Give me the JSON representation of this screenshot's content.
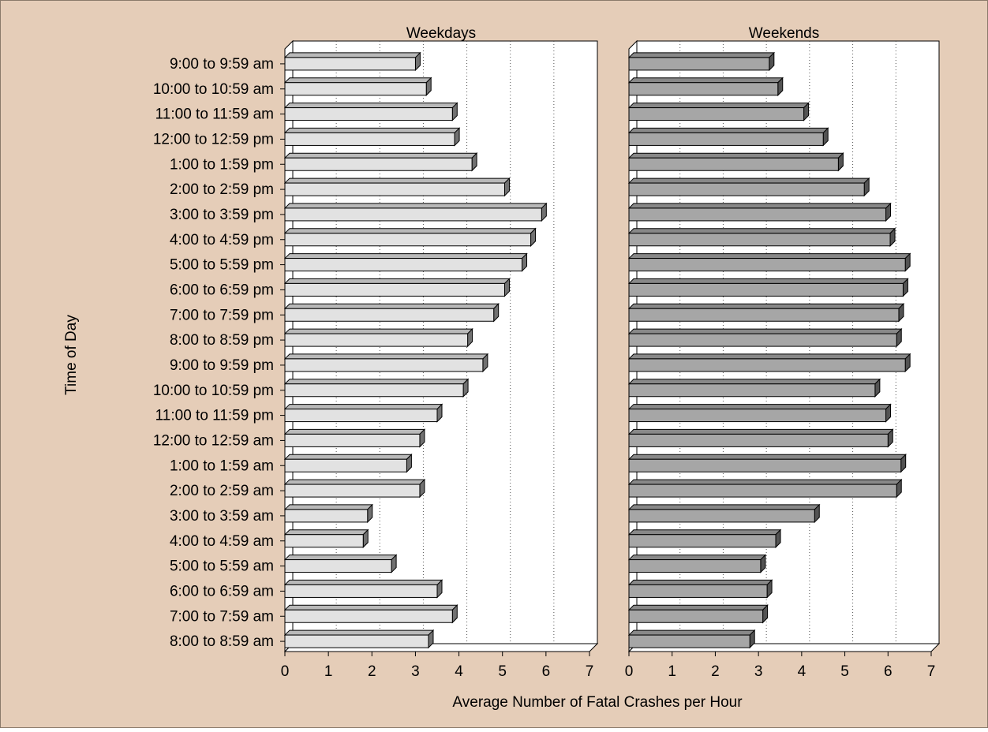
{
  "chart_data": {
    "type": "bar",
    "orientation": "horizontal",
    "ylabel": "Time of Day",
    "xlabel": "Average Number of Fatal Crashes per Hour",
    "xlim": [
      0,
      7
    ],
    "xticks": [
      "0",
      "1",
      "2",
      "3",
      "4",
      "5",
      "6",
      "7"
    ],
    "grid": "vertical dotted",
    "categories": [
      "9:00 to 9:59 am",
      "10:00 to 10:59 am",
      "11:00 to 11:59 am",
      "12:00 to 12:59 pm",
      "1:00 to 1:59 pm",
      "2:00 to 2:59 pm",
      "3:00 to 3:59 pm",
      "4:00 to 4:59 pm",
      "5:00 to 5:59 pm",
      "6:00 to 6:59 pm",
      "7:00 to 7:59 pm",
      "8:00 to 8:59 pm",
      "9:00 to 9:59 pm",
      "10:00 to 10:59 pm",
      "11:00 to 11:59 pm",
      "12:00 to 12:59 am",
      "1:00 to 1:59 am",
      "2:00 to 2:59 am",
      "3:00 to 3:59 am",
      "4:00 to 4:59 am",
      "5:00 to 5:59 am",
      "6:00 to 6:59 am",
      "7:00 to 7:59 am",
      "8:00 to 8:59 am"
    ],
    "panels": [
      {
        "title": "Weekdays",
        "color": "#e2e2e2",
        "values": [
          3.0,
          3.25,
          3.85,
          3.9,
          4.3,
          5.05,
          5.9,
          5.65,
          5.45,
          5.05,
          4.8,
          4.2,
          4.55,
          4.1,
          3.5,
          3.1,
          2.8,
          3.1,
          1.9,
          1.8,
          2.45,
          3.5,
          3.85,
          3.3
        ]
      },
      {
        "title": "Weekends",
        "color": "#a6a6a6",
        "values": [
          3.25,
          3.45,
          4.05,
          4.5,
          4.85,
          5.45,
          5.95,
          6.05,
          6.4,
          6.35,
          6.25,
          6.2,
          6.4,
          5.7,
          5.95,
          6.0,
          6.3,
          6.2,
          4.3,
          3.4,
          3.05,
          3.2,
          3.1,
          2.8
        ]
      }
    ]
  }
}
